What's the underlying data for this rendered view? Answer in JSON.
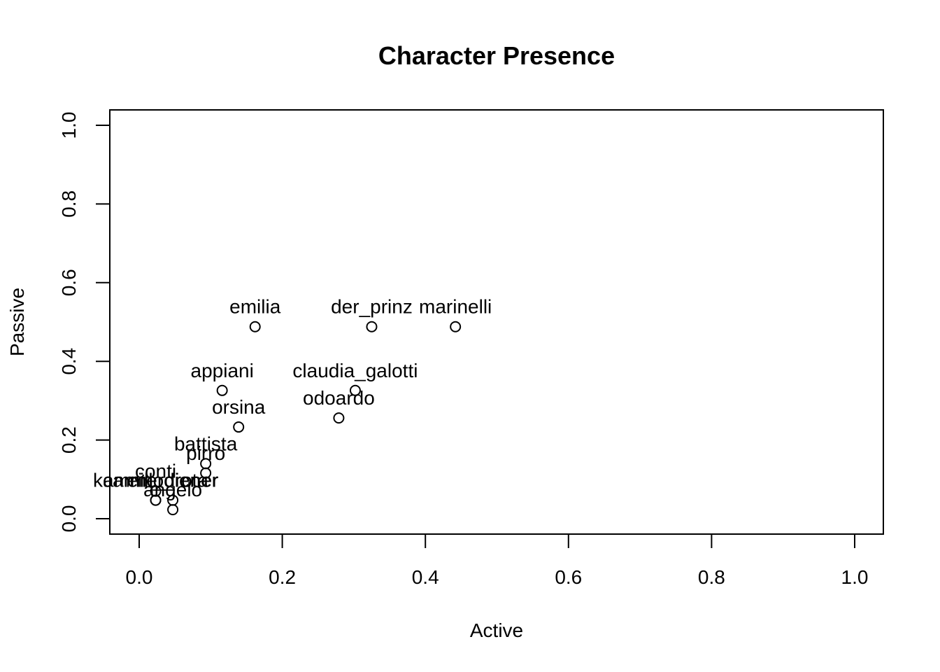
{
  "chart_data": {
    "type": "scatter",
    "title": "Character Presence",
    "xlabel": "Active",
    "ylabel": "Passive",
    "xlim": [
      0,
      1
    ],
    "ylim": [
      0,
      1
    ],
    "x_ticks": [
      "0.0",
      "0.2",
      "0.4",
      "0.6",
      "0.8",
      "1.0"
    ],
    "y_ticks": [
      "0.0",
      "0.2",
      "0.4",
      "0.6",
      "0.8",
      "1.0"
    ],
    "grid": false,
    "legend": "none",
    "points": [
      {
        "label": "emilia",
        "x": 0.162,
        "y": 0.488
      },
      {
        "label": "der_prinz",
        "x": 0.325,
        "y": 0.488
      },
      {
        "label": "marinelli",
        "x": 0.442,
        "y": 0.488
      },
      {
        "label": "appiani",
        "x": 0.116,
        "y": 0.326
      },
      {
        "label": "claudia_galotti",
        "x": 0.302,
        "y": 0.326
      },
      {
        "label": "odoardo",
        "x": 0.279,
        "y": 0.256
      },
      {
        "label": "orsina",
        "x": 0.139,
        "y": 0.233
      },
      {
        "label": "battista",
        "x": 0.093,
        "y": 0.14
      },
      {
        "label": "pirro",
        "x": 0.093,
        "y": 0.116
      },
      {
        "label": "conti",
        "x": 0.023,
        "y": 0.07
      },
      {
        "label": "camillo_rota",
        "x": 0.023,
        "y": 0.047
      },
      {
        "label": "ein_diener",
        "x": 0.047,
        "y": 0.047
      },
      {
        "label": "kammerdiener",
        "x": 0.023,
        "y": 0.047
      },
      {
        "label": "angelo",
        "x": 0.047,
        "y": 0.023
      }
    ]
  }
}
